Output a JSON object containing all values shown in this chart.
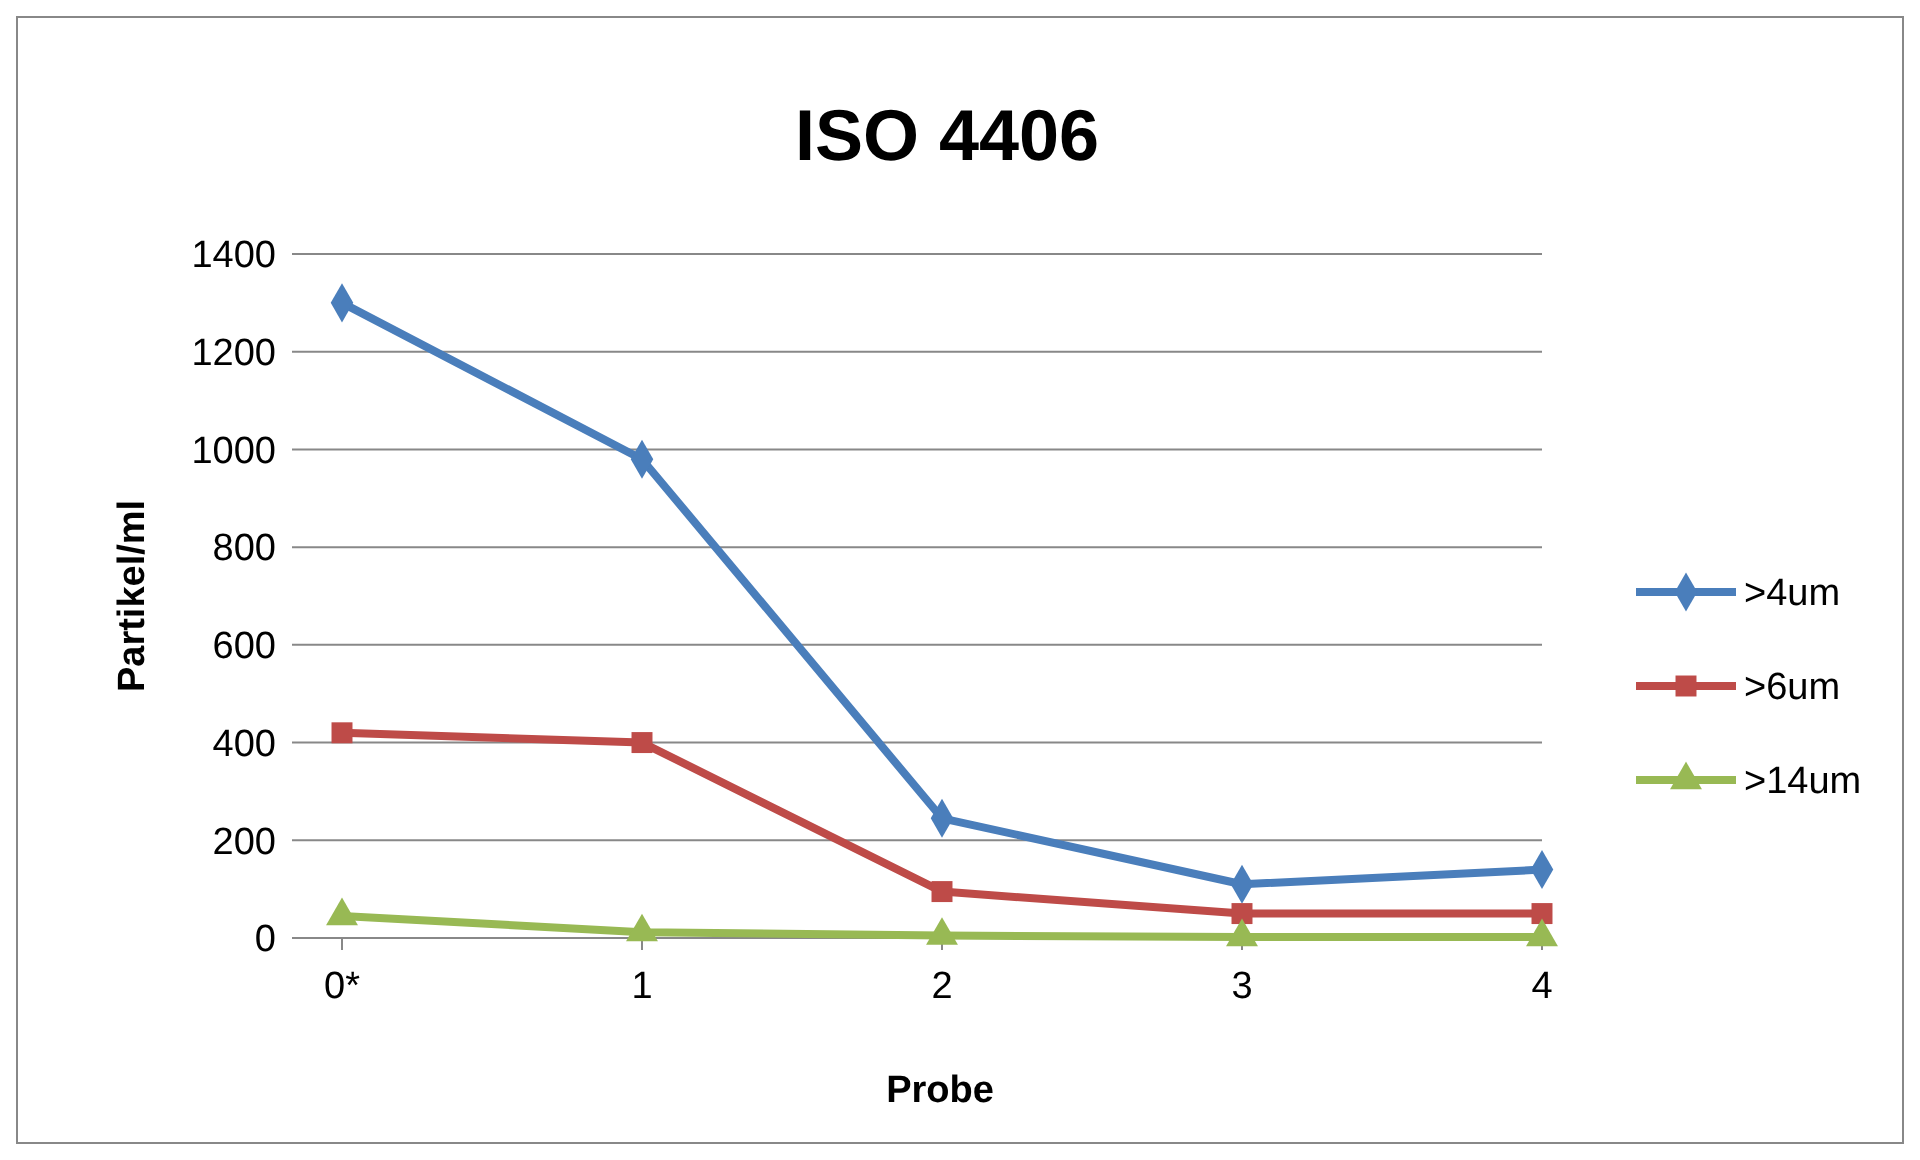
{
  "chart_data": {
    "type": "line",
    "title": "ISO 4406",
    "xlabel": "Probe",
    "ylabel": "Partikel/ml",
    "categories": [
      "0*",
      "1",
      "2",
      "3",
      "4"
    ],
    "ylim": [
      0,
      1400
    ],
    "yticks": [
      0,
      200,
      400,
      600,
      800,
      1000,
      1200,
      1400
    ],
    "grid": "y",
    "legend": "right",
    "line_style": "solid",
    "series": [
      {
        "name": ">4um",
        "color": "#4a7ebb",
        "marker": "diamond",
        "values": [
          1300,
          980,
          245,
          110,
          140
        ]
      },
      {
        "name": ">6um",
        "color": "#be4b48",
        "marker": "square",
        "values": [
          420,
          400,
          95,
          50,
          50
        ]
      },
      {
        "name": ">14um",
        "color": "#98b954",
        "marker": "triangle",
        "values": [
          45,
          12,
          5,
          2,
          2
        ]
      }
    ]
  }
}
